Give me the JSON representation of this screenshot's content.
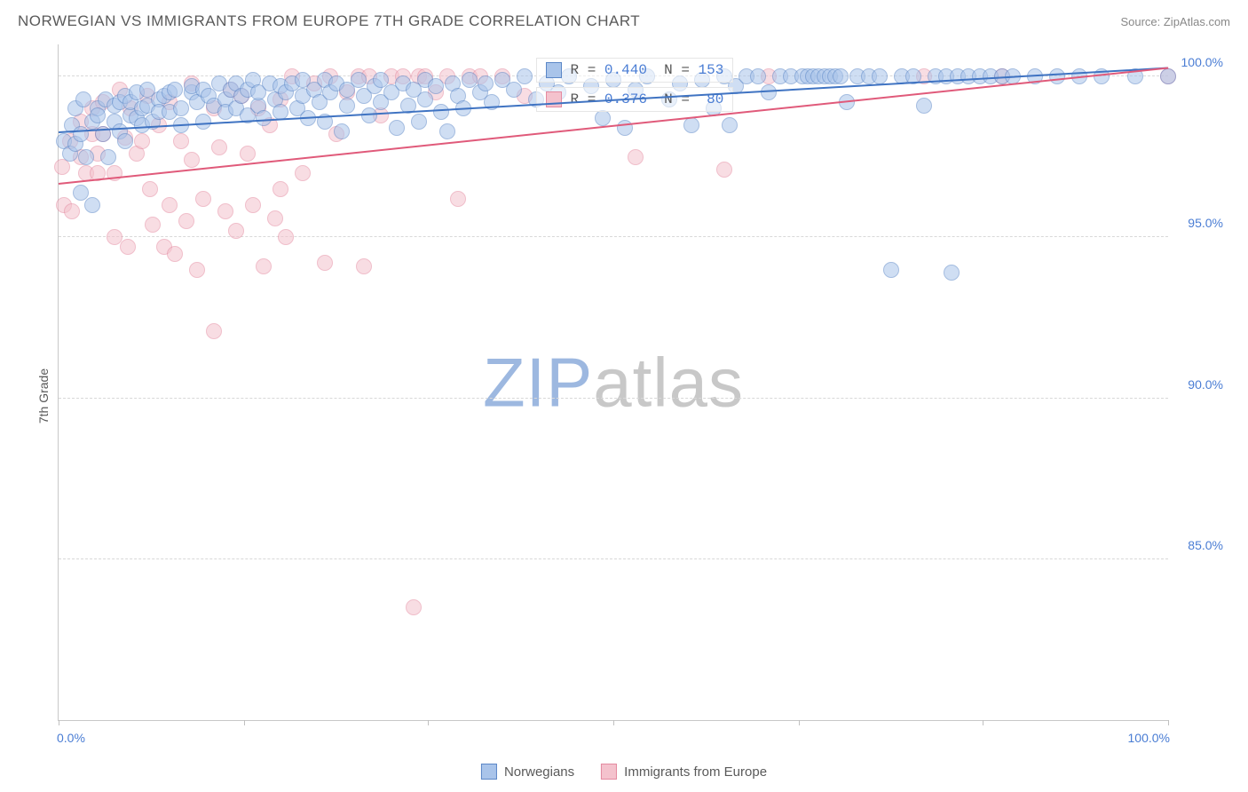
{
  "header": {
    "title": "NORWEGIAN VS IMMIGRANTS FROM EUROPE 7TH GRADE CORRELATION CHART",
    "source": "Source: ZipAtlas.com"
  },
  "ylabel": "7th Grade",
  "watermark": {
    "text_a": "ZIP",
    "text_b": "atlas",
    "color_a": "#9db8e0",
    "color_b": "#c8c8c8"
  },
  "chart": {
    "type": "scatter",
    "xlim": [
      0,
      100
    ],
    "ylim": [
      80,
      101
    ],
    "background_color": "#ffffff",
    "grid_color": "#d8d8d8",
    "axis_color": "#c8c8c8",
    "yticks": [
      {
        "v": 85.0,
        "label": "85.0%"
      },
      {
        "v": 90.0,
        "label": "90.0%"
      },
      {
        "v": 95.0,
        "label": "95.0%"
      },
      {
        "v": 100.0,
        "label": "100.0%"
      }
    ],
    "xticks_major": [
      0,
      16.7,
      33.3,
      50,
      66.7,
      83.3,
      100
    ],
    "xtick_labels": [
      {
        "v": 0,
        "label": "0.0%"
      },
      {
        "v": 100,
        "label": "100.0%"
      }
    ],
    "series": [
      {
        "name": "Norwegians",
        "fill": "#a9c4ea",
        "stroke": "#5b87c7",
        "trend_color": "#3f73c2",
        "marker_radius": 9,
        "fill_opacity": 0.55,
        "trend": {
          "x1": 0,
          "y1": 98.3,
          "x2": 100,
          "y2": 100.3
        },
        "stats": {
          "R": "0.440",
          "N": "153"
        },
        "points": [
          [
            0.5,
            98.0
          ],
          [
            1,
            97.6
          ],
          [
            1.2,
            98.5
          ],
          [
            1.5,
            97.9
          ],
          [
            1.5,
            99.0
          ],
          [
            2,
            96.4
          ],
          [
            2,
            98.2
          ],
          [
            2.2,
            99.3
          ],
          [
            2.5,
            97.5
          ],
          [
            3,
            98.6
          ],
          [
            3,
            96.0
          ],
          [
            3.5,
            99.0
          ],
          [
            3.5,
            98.8
          ],
          [
            4,
            98.2
          ],
          [
            4.2,
            99.3
          ],
          [
            4.5,
            97.5
          ],
          [
            5,
            99.1
          ],
          [
            5,
            98.6
          ],
          [
            5.5,
            99.2
          ],
          [
            5.5,
            98.3
          ],
          [
            6,
            98.0
          ],
          [
            6,
            99.4
          ],
          [
            6.5,
            98.8
          ],
          [
            6.5,
            99.2
          ],
          [
            7,
            98.7
          ],
          [
            7,
            99.5
          ],
          [
            7.5,
            98.5
          ],
          [
            7.5,
            99.0
          ],
          [
            8,
            99.1
          ],
          [
            8,
            99.6
          ],
          [
            8.5,
            98.6
          ],
          [
            9,
            99.3
          ],
          [
            9,
            98.9
          ],
          [
            9.5,
            99.4
          ],
          [
            10,
            98.9
          ],
          [
            10,
            99.5
          ],
          [
            10.5,
            99.6
          ],
          [
            11,
            99.0
          ],
          [
            11,
            98.5
          ],
          [
            12,
            99.5
          ],
          [
            12,
            99.7
          ],
          [
            12.5,
            99.2
          ],
          [
            13,
            99.6
          ],
          [
            13,
            98.6
          ],
          [
            13.5,
            99.4
          ],
          [
            14,
            99.1
          ],
          [
            14.5,
            99.8
          ],
          [
            15,
            99.3
          ],
          [
            15,
            98.9
          ],
          [
            15.5,
            99.6
          ],
          [
            16,
            99.0
          ],
          [
            16,
            99.8
          ],
          [
            16.5,
            99.4
          ],
          [
            17,
            98.8
          ],
          [
            17,
            99.6
          ],
          [
            17.5,
            99.9
          ],
          [
            18,
            99.1
          ],
          [
            18,
            99.5
          ],
          [
            18.5,
            98.7
          ],
          [
            19,
            99.8
          ],
          [
            19.5,
            99.3
          ],
          [
            20,
            99.7
          ],
          [
            20,
            98.9
          ],
          [
            20.5,
            99.5
          ],
          [
            21,
            99.8
          ],
          [
            21.5,
            99.0
          ],
          [
            22,
            99.9
          ],
          [
            22,
            99.4
          ],
          [
            22.5,
            98.7
          ],
          [
            23,
            99.6
          ],
          [
            23.5,
            99.2
          ],
          [
            24,
            99.9
          ],
          [
            24,
            98.6
          ],
          [
            24.5,
            99.5
          ],
          [
            25,
            99.8
          ],
          [
            25.5,
            98.3
          ],
          [
            26,
            99.6
          ],
          [
            26,
            99.1
          ],
          [
            27,
            99.9
          ],
          [
            27.5,
            99.4
          ],
          [
            28,
            98.8
          ],
          [
            28.5,
            99.7
          ],
          [
            29,
            99.2
          ],
          [
            29,
            99.9
          ],
          [
            30,
            99.5
          ],
          [
            30.5,
            98.4
          ],
          [
            31,
            99.8
          ],
          [
            31.5,
            99.1
          ],
          [
            32,
            99.6
          ],
          [
            32.5,
            98.6
          ],
          [
            33,
            99.9
          ],
          [
            33,
            99.3
          ],
          [
            34,
            99.7
          ],
          [
            34.5,
            98.9
          ],
          [
            35,
            98.3
          ],
          [
            35.5,
            99.8
          ],
          [
            36,
            99.4
          ],
          [
            36.5,
            99.0
          ],
          [
            37,
            99.9
          ],
          [
            38,
            99.5
          ],
          [
            38.5,
            99.8
          ],
          [
            39,
            99.2
          ],
          [
            40,
            99.9
          ],
          [
            41,
            99.6
          ],
          [
            42,
            100.0
          ],
          [
            43,
            99.3
          ],
          [
            44,
            99.8
          ],
          [
            45,
            99.5
          ],
          [
            46,
            100.0
          ],
          [
            48,
            99.7
          ],
          [
            49,
            98.7
          ],
          [
            50,
            99.9
          ],
          [
            51,
            98.4
          ],
          [
            52,
            99.6
          ],
          [
            53,
            100.0
          ],
          [
            55,
            99.3
          ],
          [
            56,
            99.8
          ],
          [
            57,
            98.5
          ],
          [
            58,
            99.9
          ],
          [
            59,
            99.0
          ],
          [
            60,
            100.0
          ],
          [
            60.5,
            98.5
          ],
          [
            61,
            99.7
          ],
          [
            62,
            100.0
          ],
          [
            63,
            100.0
          ],
          [
            64,
            99.5
          ],
          [
            65,
            100.0
          ],
          [
            66,
            100.0
          ],
          [
            67,
            100.0
          ],
          [
            67.5,
            100.0
          ],
          [
            68,
            100.0
          ],
          [
            68.5,
            100.0
          ],
          [
            69,
            100.0
          ],
          [
            69.5,
            100.0
          ],
          [
            70,
            100.0
          ],
          [
            70.5,
            100.0
          ],
          [
            71,
            99.2
          ],
          [
            72,
            100.0
          ],
          [
            73,
            100.0
          ],
          [
            74,
            100.0
          ],
          [
            75,
            94.0
          ],
          [
            76,
            100.0
          ],
          [
            77,
            100.0
          ],
          [
            78,
            99.1
          ],
          [
            79,
            100.0
          ],
          [
            80,
            100.0
          ],
          [
            80.5,
            93.9
          ],
          [
            81,
            100.0
          ],
          [
            82,
            100.0
          ],
          [
            83,
            100.0
          ],
          [
            84,
            100.0
          ],
          [
            85,
            100.0
          ],
          [
            86,
            100.0
          ],
          [
            88,
            100.0
          ],
          [
            90,
            100.0
          ],
          [
            92,
            100.0
          ],
          [
            94,
            100.0
          ],
          [
            97,
            100.0
          ],
          [
            100,
            100.0
          ]
        ]
      },
      {
        "name": "Immigrants from Europe",
        "fill": "#f4c2cd",
        "stroke": "#e48aa0",
        "trend_color": "#e05a7a",
        "marker_radius": 9,
        "fill_opacity": 0.55,
        "trend": {
          "x1": 0,
          "y1": 96.7,
          "x2": 100,
          "y2": 100.3
        },
        "stats": {
          "R": "0.376",
          "N": "80"
        },
        "points": [
          [
            0.3,
            97.2
          ],
          [
            0.5,
            96.0
          ],
          [
            1,
            98.0
          ],
          [
            1.2,
            95.8
          ],
          [
            2,
            97.5
          ],
          [
            2,
            98.6
          ],
          [
            2.5,
            97.0
          ],
          [
            3,
            99.0
          ],
          [
            3,
            98.2
          ],
          [
            3.5,
            97.0
          ],
          [
            3.5,
            97.6
          ],
          [
            4,
            99.2
          ],
          [
            4,
            98.2
          ],
          [
            5,
            97.0
          ],
          [
            5,
            95.0
          ],
          [
            5.5,
            99.6
          ],
          [
            6,
            98.1
          ],
          [
            6.2,
            94.7
          ],
          [
            6.5,
            99.0
          ],
          [
            7,
            97.6
          ],
          [
            7.5,
            98.0
          ],
          [
            8,
            99.4
          ],
          [
            8.2,
            96.5
          ],
          [
            8.5,
            95.4
          ],
          [
            9,
            98.5
          ],
          [
            9.5,
            94.7
          ],
          [
            10,
            99.2
          ],
          [
            10,
            96.0
          ],
          [
            10.5,
            94.5
          ],
          [
            11,
            98.0
          ],
          [
            11.5,
            95.5
          ],
          [
            12,
            99.8
          ],
          [
            12,
            97.4
          ],
          [
            12.5,
            94.0
          ],
          [
            13,
            96.2
          ],
          [
            14,
            92.1
          ],
          [
            14,
            99.0
          ],
          [
            14.5,
            97.8
          ],
          [
            15,
            95.8
          ],
          [
            15.5,
            99.6
          ],
          [
            16,
            95.2
          ],
          [
            16.5,
            99.4
          ],
          [
            17,
            97.6
          ],
          [
            17.5,
            96.0
          ],
          [
            18,
            99.0
          ],
          [
            18.5,
            94.1
          ],
          [
            19,
            98.5
          ],
          [
            19.5,
            95.6
          ],
          [
            20,
            99.3
          ],
          [
            20,
            96.5
          ],
          [
            20.5,
            95.0
          ],
          [
            21,
            100.0
          ],
          [
            22,
            97.0
          ],
          [
            23,
            99.8
          ],
          [
            24,
            94.2
          ],
          [
            24.5,
            100.0
          ],
          [
            25,
            98.2
          ],
          [
            26,
            99.5
          ],
          [
            27,
            100.0
          ],
          [
            27.5,
            94.1
          ],
          [
            28,
            100.0
          ],
          [
            29,
            98.8
          ],
          [
            30,
            100.0
          ],
          [
            31,
            100.0
          ],
          [
            32,
            83.5
          ],
          [
            32.5,
            100.0
          ],
          [
            33,
            100.0
          ],
          [
            34,
            99.5
          ],
          [
            35,
            100.0
          ],
          [
            36,
            96.2
          ],
          [
            37,
            100.0
          ],
          [
            38,
            100.0
          ],
          [
            40,
            100.0
          ],
          [
            42,
            99.4
          ],
          [
            52,
            97.5
          ],
          [
            60,
            97.1
          ],
          [
            64,
            100.0
          ],
          [
            78,
            100.0
          ],
          [
            85,
            100.0
          ],
          [
            100,
            100.0
          ]
        ]
      }
    ],
    "r_boxes": [
      {
        "series_index": 0,
        "top_pct": 2
      },
      {
        "series_index": 1,
        "top_pct": 6.3
      }
    ]
  },
  "legend": {
    "items": [
      {
        "label": "Norwegians",
        "fill": "#a9c4ea",
        "stroke": "#5b87c7"
      },
      {
        "label": "Immigrants from Europe",
        "fill": "#f4c2cd",
        "stroke": "#e48aa0"
      }
    ]
  }
}
